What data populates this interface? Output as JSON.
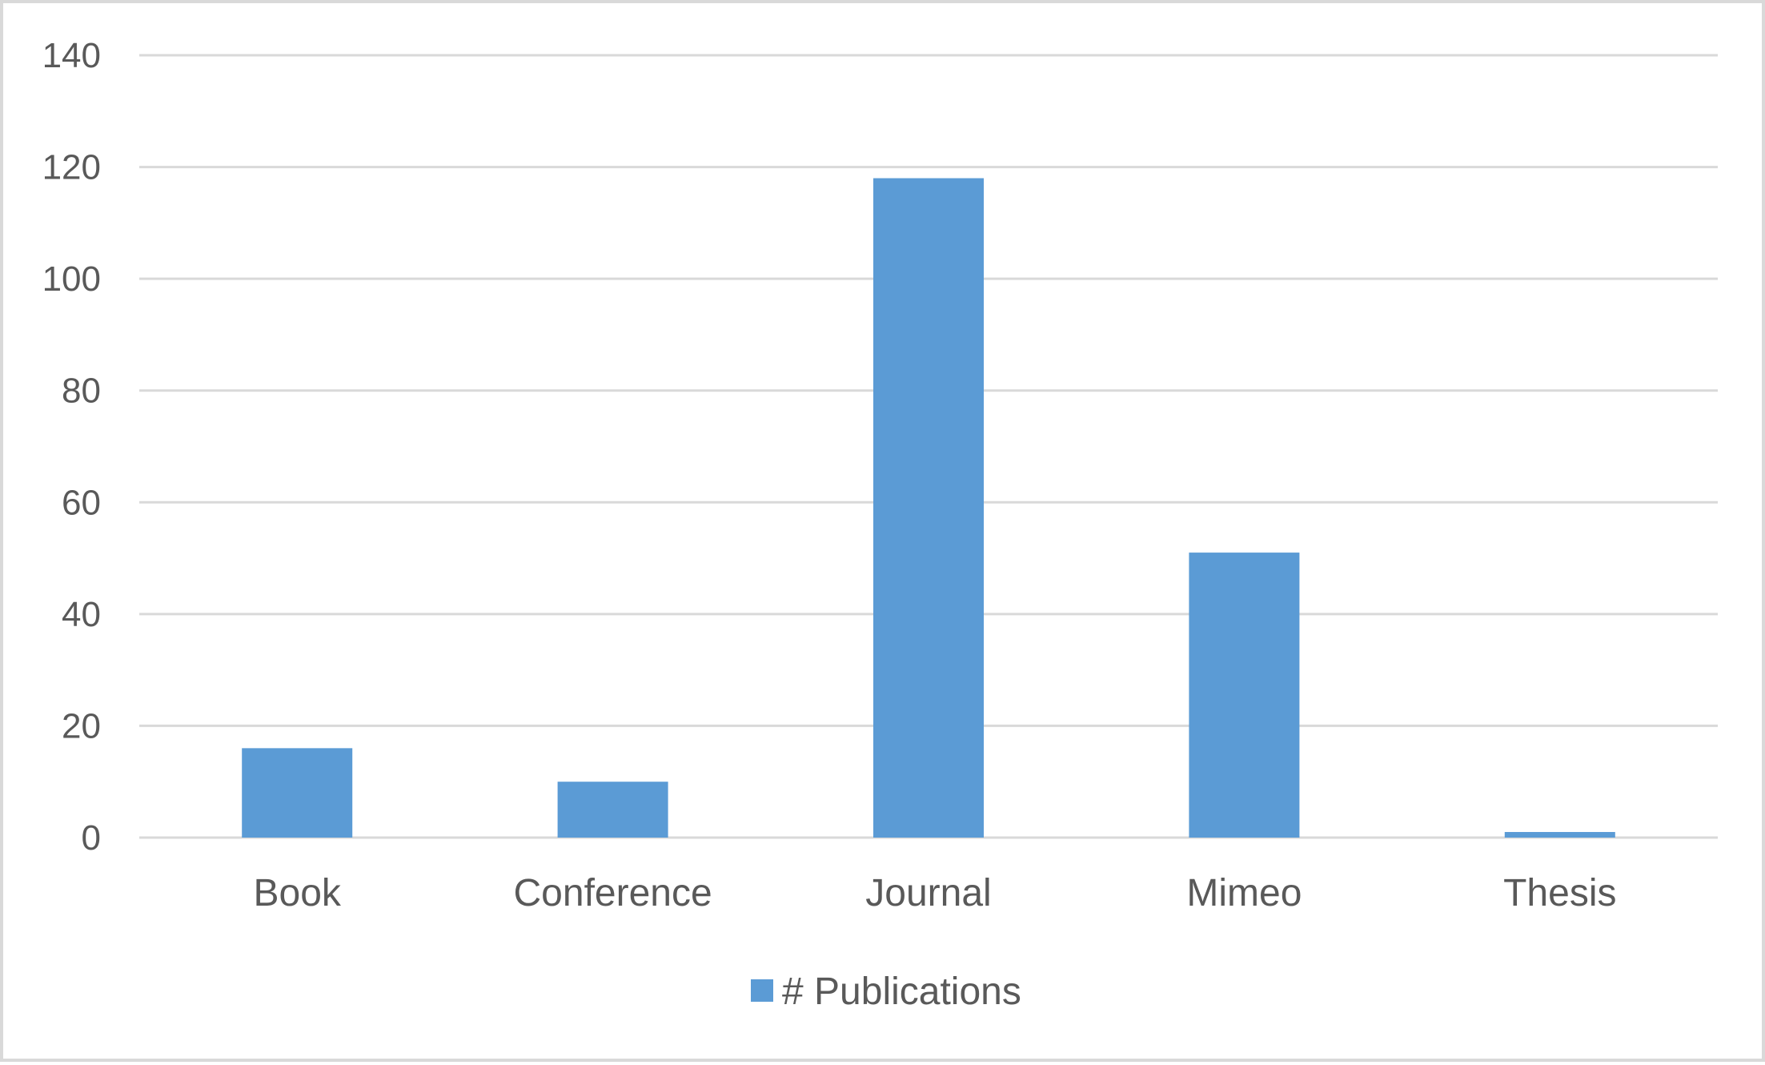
{
  "chart_data": {
    "type": "bar",
    "categories": [
      "Book",
      "Conference",
      "Journal",
      "Mimeo",
      "Thesis"
    ],
    "series": [
      {
        "name": "# Publications",
        "values": [
          16,
          10,
          118,
          51,
          1
        ]
      }
    ],
    "ylim": [
      0,
      140
    ],
    "yticks": [
      0,
      20,
      40,
      60,
      80,
      100,
      120,
      140
    ],
    "grid": true,
    "legend_position": "bottom",
    "colors": {
      "bar": "#5b9bd5",
      "grid": "#d9d9d9",
      "text": "#595959",
      "border": "#d9d9d9"
    }
  }
}
